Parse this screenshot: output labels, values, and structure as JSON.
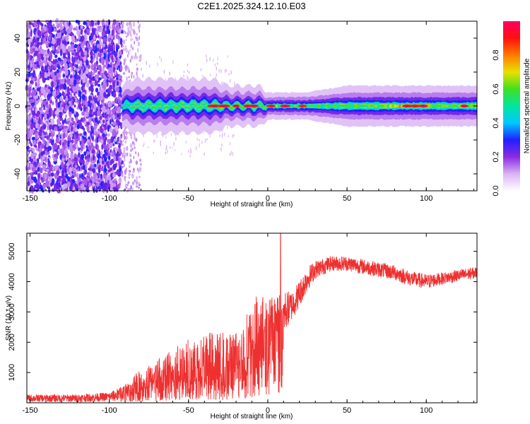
{
  "title": "C2E1.2025.324.12.10.E03",
  "chart_data": [
    {
      "type": "heatmap",
      "name": "spectrogram",
      "xlabel": "Height of straight line (km)",
      "ylabel": "Frequency (Hz)",
      "xlim": [
        -152,
        132
      ],
      "ylim": [
        -50,
        50
      ],
      "xticks": [
        -150,
        -100,
        -50,
        0,
        50,
        100
      ],
      "yticks": [
        -40,
        -20,
        0,
        20,
        40
      ],
      "colorbar": {
        "label": "Normalized spectral amplitude",
        "range": [
          0,
          1
        ],
        "ticks": [
          "0.0",
          "0.2",
          "0.4",
          "0.6",
          "0.8"
        ],
        "tick_values": [
          0,
          0.2,
          0.4,
          0.6,
          0.8
        ],
        "colors": [
          "#ffffff",
          "#d9b3f5",
          "#8a2be2",
          "#2020ff",
          "#00c8ff",
          "#00e5a0",
          "#40e020",
          "#e8e000",
          "#ff7a00",
          "#ff1010",
          "#ff0060"
        ]
      },
      "noise_region_x": [
        -152,
        -92
      ],
      "sparse_region_x": [
        -92,
        -80
      ],
      "carrier_band": [
        {
          "x": -92,
          "width_hz": 3,
          "amp": 0.42
        },
        {
          "x": -85,
          "width_hz": 4,
          "amp": 0.45
        },
        {
          "x": -75,
          "width_hz": 4,
          "amp": 0.48
        },
        {
          "x": -60,
          "width_hz": 4,
          "amp": 0.5
        },
        {
          "x": -45,
          "width_hz": 4,
          "amp": 0.52
        },
        {
          "x": -35,
          "width_hz": 4,
          "amp": 0.58
        },
        {
          "x": -25,
          "width_hz": 3,
          "amp": 0.6
        },
        {
          "x": -15,
          "width_hz": 3,
          "amp": 0.62
        },
        {
          "x": -5,
          "width_hz": 3,
          "amp": 0.5
        },
        {
          "x": 0,
          "width_hz": 2,
          "amp": 0.65
        },
        {
          "x": 10,
          "width_hz": 2,
          "amp": 0.6
        },
        {
          "x": 25,
          "width_hz": 2,
          "amp": 0.58
        },
        {
          "x": 50,
          "width_hz": 3,
          "amp": 0.55
        },
        {
          "x": 75,
          "width_hz": 3,
          "amp": 0.6
        },
        {
          "x": 90,
          "width_hz": 3,
          "amp": 0.92
        },
        {
          "x": 105,
          "width_hz": 3,
          "amp": 0.6
        },
        {
          "x": 120,
          "width_hz": 3,
          "amp": 0.62
        },
        {
          "x": 132,
          "width_hz": 3,
          "amp": 0.62
        }
      ],
      "hot_spots_x": [
        -34,
        -28,
        -20,
        -13,
        -9,
        2,
        11,
        22,
        88,
        93,
        98,
        124
      ]
    },
    {
      "type": "line",
      "name": "snr",
      "xlabel": "Height of straight line (km)",
      "ylabel": "SNR (10 * v/v)",
      "xlim": [
        -152,
        132
      ],
      "ylim": [
        0,
        5600
      ],
      "xticks": [
        -150,
        -100,
        -50,
        0,
        50,
        100
      ],
      "yticks": [
        1000,
        2000,
        3000,
        4000,
        5000
      ],
      "color": "#ee3030",
      "envelope": {
        "x": [
          -152,
          -120,
          -100,
          -90,
          -80,
          -70,
          -60,
          -50,
          -40,
          -30,
          -20,
          -15,
          -10,
          -5,
          0,
          5,
          8,
          10,
          15,
          20,
          25,
          30,
          40,
          50,
          60,
          70,
          80,
          90,
          100,
          110,
          120,
          132
        ],
        "base": [
          150,
          150,
          200,
          300,
          450,
          600,
          800,
          900,
          900,
          900,
          1000,
          1100,
          1600,
          2000,
          2400,
          2600,
          2700,
          3000,
          3200,
          3600,
          4100,
          4400,
          4600,
          4600,
          4500,
          4400,
          4300,
          4100,
          4000,
          4100,
          4200,
          4300
        ],
        "spread": [
          120,
          130,
          150,
          300,
          700,
          800,
          1100,
          1200,
          1500,
          1400,
          1400,
          1600,
          1800,
          1600,
          1000,
          1000,
          900,
          700,
          500,
          450,
          400,
          300,
          250,
          250,
          250,
          250,
          250,
          250,
          250,
          200,
          200,
          200
        ]
      },
      "peak": {
        "x": 8,
        "y": 5600
      }
    }
  ]
}
